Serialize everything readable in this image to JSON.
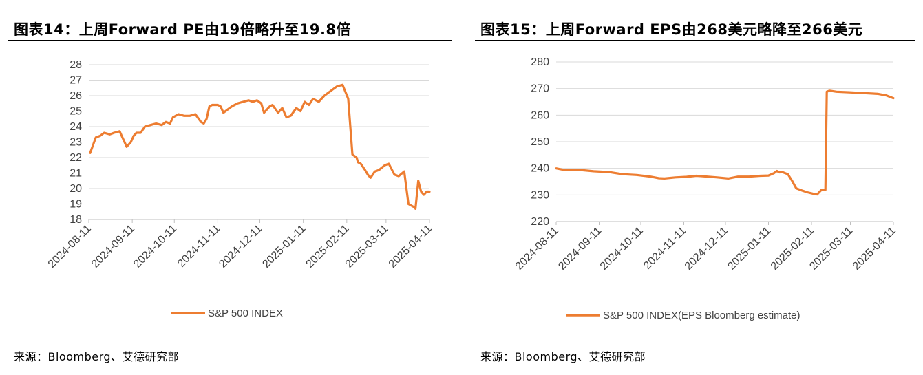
{
  "charts": [
    {
      "title": "图表14：上周Forward PE由19倍略升至19.8倍",
      "source": "来源：Bloomberg、艾德研究部"
    },
    {
      "title": "图表15：上周Forward EPS由268美元略降至266美元",
      "source": "来源：Bloomberg、艾德研究部"
    }
  ],
  "chart_data": [
    {
      "type": "line",
      "title": "图表14：上周Forward PE由19倍略升至19.8倍",
      "xlabel": "",
      "ylabel": "",
      "ylim": [
        18,
        28
      ],
      "yticks": [
        "18",
        "19",
        "20",
        "21",
        "22",
        "23",
        "24",
        "25",
        "26",
        "27",
        "28"
      ],
      "xlim": [
        "2024-08-11",
        "2025-04-11"
      ],
      "xticks": [
        "2024-08-11",
        "2024-09-11",
        "2024-10-11",
        "2024-11-11",
        "2024-12-11",
        "2025-01-11",
        "2025-02-11",
        "2025-03-11",
        "2025-04-11"
      ],
      "grid": "horizontal",
      "legend_position": "bottom",
      "color": "#ED7D31",
      "series": [
        {
          "name": "S&P 500 INDEX",
          "x": [
            "2024-08-12",
            "2024-08-14",
            "2024-08-16",
            "2024-08-19",
            "2024-08-22",
            "2024-08-26",
            "2024-08-29",
            "2024-09-02",
            "2024-09-05",
            "2024-09-07",
            "2024-09-10",
            "2024-09-12",
            "2024-09-14",
            "2024-09-17",
            "2024-09-20",
            "2024-09-24",
            "2024-09-28",
            "2024-10-02",
            "2024-10-05",
            "2024-10-08",
            "2024-10-10",
            "2024-10-14",
            "2024-10-18",
            "2024-10-22",
            "2024-10-26",
            "2024-10-30",
            "2024-11-01",
            "2024-11-03",
            "2024-11-05",
            "2024-11-07",
            "2024-11-11",
            "2024-11-13",
            "2024-11-15",
            "2024-11-18",
            "2024-11-21",
            "2024-11-25",
            "2024-11-29",
            "2024-12-03",
            "2024-12-06",
            "2024-12-09",
            "2024-12-12",
            "2024-12-14",
            "2024-12-18",
            "2024-12-20",
            "2024-12-24",
            "2024-12-27",
            "2024-12-30",
            "2025-01-02",
            "2025-01-06",
            "2025-01-09",
            "2025-01-12",
            "2025-01-15",
            "2025-01-18",
            "2025-01-22",
            "2025-01-26",
            "2025-01-29",
            "2025-02-01",
            "2025-02-04",
            "2025-02-08",
            "2025-02-12",
            "2025-02-15",
            "2025-02-18",
            "2025-02-19",
            "2025-02-21",
            "2025-02-24",
            "2025-02-26",
            "2025-02-28",
            "2025-03-03",
            "2025-03-06",
            "2025-03-10",
            "2025-03-13",
            "2025-03-17",
            "2025-03-20",
            "2025-03-24",
            "2025-03-27",
            "2025-03-31",
            "2025-04-01",
            "2025-04-03",
            "2025-04-05",
            "2025-04-07",
            "2025-04-08",
            "2025-04-09",
            "2025-04-10",
            "2025-04-11"
          ],
          "y": [
            22.3,
            22.8,
            23.3,
            23.4,
            23.6,
            23.5,
            23.6,
            23.7,
            23.1,
            22.7,
            23.0,
            23.4,
            23.6,
            23.6,
            24.0,
            24.1,
            24.2,
            24.1,
            24.3,
            24.2,
            24.6,
            24.8,
            24.7,
            24.7,
            24.8,
            24.3,
            24.2,
            24.5,
            25.3,
            25.4,
            25.4,
            25.3,
            24.9,
            25.1,
            25.3,
            25.5,
            25.6,
            25.7,
            25.6,
            25.7,
            25.5,
            24.9,
            25.3,
            25.4,
            24.9,
            25.2,
            24.6,
            24.7,
            25.2,
            25.0,
            25.6,
            25.4,
            25.8,
            25.6,
            26.0,
            26.2,
            26.4,
            26.6,
            26.7,
            25.8,
            22.2,
            22.0,
            21.7,
            21.6,
            21.2,
            20.9,
            20.7,
            21.1,
            21.2,
            21.5,
            21.6,
            20.9,
            20.8,
            21.1,
            19.0,
            18.8,
            18.7,
            20.5,
            19.8,
            19.6,
            19.7,
            19.8,
            19.8,
            19.8
          ]
        }
      ]
    },
    {
      "type": "line",
      "title": "图表15：上周Forward EPS由268美元略降至266美元",
      "xlabel": "",
      "ylabel": "",
      "ylim": [
        220,
        280
      ],
      "yticks": [
        "220",
        "230",
        "240",
        "250",
        "260",
        "270",
        "280"
      ],
      "xlim": [
        "2024-08-11",
        "2025-04-11"
      ],
      "xticks": [
        "2024-08-11",
        "2024-09-11",
        "2024-10-11",
        "2024-11-11",
        "2024-12-11",
        "2025-01-11",
        "2025-02-11",
        "2025-03-11",
        "2025-04-11"
      ],
      "grid": "horizontal",
      "legend_position": "bottom",
      "color": "#ED7D31",
      "series": [
        {
          "name": "S&P 500 INDEX(EPS Bloomberg estimate)",
          "x": [
            "2024-08-11",
            "2024-08-18",
            "2024-08-28",
            "2024-09-07",
            "2024-09-18",
            "2024-09-28",
            "2024-10-08",
            "2024-10-18",
            "2024-10-24",
            "2024-10-28",
            "2024-11-05",
            "2024-11-13",
            "2024-11-20",
            "2024-11-28",
            "2024-12-05",
            "2024-12-13",
            "2024-12-20",
            "2024-12-28",
            "2025-01-05",
            "2025-01-11",
            "2025-01-15",
            "2025-01-17",
            "2025-01-19",
            "2025-01-21",
            "2025-01-25",
            "2025-01-28",
            "2025-01-31",
            "2025-02-04",
            "2025-02-08",
            "2025-02-12",
            "2025-02-15",
            "2025-02-18",
            "2025-02-21",
            "2025-02-22",
            "2025-02-24",
            "2025-02-25",
            "2025-03-01",
            "2025-03-10",
            "2025-03-20",
            "2025-03-31",
            "2025-04-06",
            "2025-04-11"
          ],
          "y": [
            240.0,
            239.3,
            239.4,
            238.9,
            238.6,
            237.8,
            237.5,
            236.9,
            236.3,
            236.2,
            236.6,
            236.8,
            237.2,
            236.9,
            236.6,
            236.2,
            236.9,
            236.9,
            237.2,
            237.3,
            238.2,
            239.0,
            238.5,
            238.6,
            237.8,
            235.3,
            232.5,
            231.7,
            231.0,
            230.5,
            230.2,
            231.8,
            231.9,
            268.8,
            269.2,
            269.1,
            268.8,
            268.6,
            268.3,
            268.0,
            267.4,
            266.4
          ]
        }
      ]
    }
  ]
}
